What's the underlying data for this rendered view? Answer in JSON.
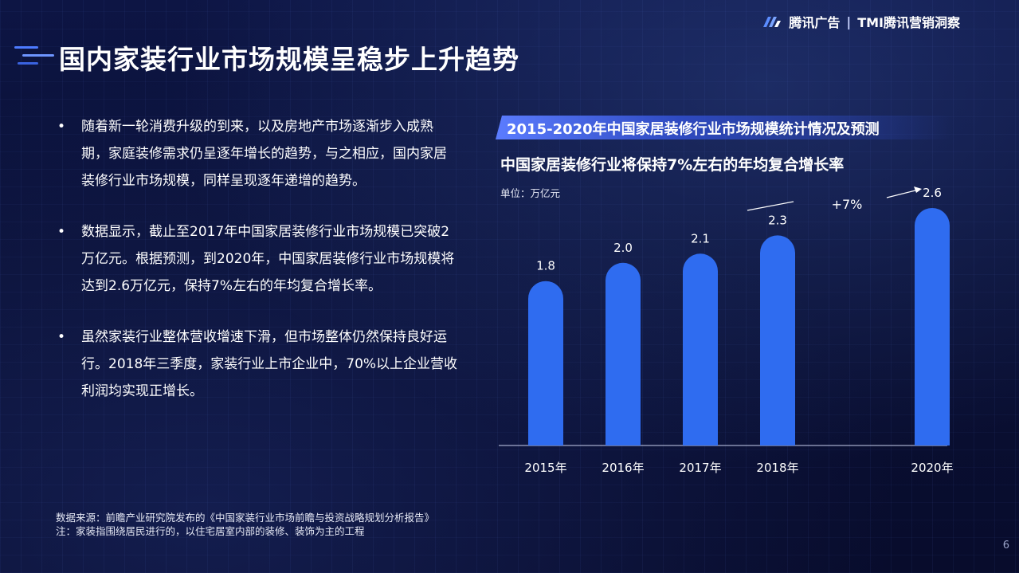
{
  "brand": {
    "name": "腾讯广告",
    "separator": "|",
    "sub": "TMI腾讯营销洞察"
  },
  "page_title": "国内家装行业市场规模呈稳步上升趋势",
  "bullets": [
    "随着新一轮消费升级的到来，以及房地产市场逐渐步入成熟期，家庭装修需求仍呈逐年增长的趋势，与之相应，国内家居装修行业市场规模，同样呈现逐年递增的趋势。",
    "数据显示，截止至2017年中国家居装修行业市场规模已突破2万亿元。根据预测，到2020年，中国家居装修行业市场规模将达到2.6万亿元，保持7%左右的年均复合增长率。",
    "虽然家装行业整体营收增速下滑，但市场整体仍然保持良好运行。2018年三季度，家装行业上市企业中，70%以上企业营收利润均实现正增长。"
  ],
  "bullet_marker": "•",
  "footnote": {
    "source": "数据来源：前瞻产业研究院发布的《中国家装行业市场前瞻与投资战略规划分析报告》",
    "note": "注：家装指围绕居民进行的，以住宅居室内部的装修、装饰为主的工程"
  },
  "page_number": "6",
  "chart_banner": "2015-2020年中国家居装修行业市场规模统计情况及预测",
  "chart_subtitle": "中国家居装修行业将保持7%左右的年均复合增长率",
  "chart_unit": "单位：万亿元",
  "colors": {
    "bar": "#2f6cf0",
    "banner": "#5b7cff",
    "background": "#0a1035"
  },
  "chart_data": {
    "type": "bar",
    "categories": [
      "2015年",
      "2016年",
      "2017年",
      "2018年",
      "2020年"
    ],
    "x_positions": [
      0,
      1,
      2,
      3,
      5
    ],
    "values": [
      1.8,
      2.0,
      2.1,
      2.3,
      2.6
    ],
    "data_labels": [
      "1.8",
      "2.0",
      "2.1",
      "2.3",
      "2.6"
    ],
    "annotation": "+7%",
    "ylim": [
      0,
      2.6
    ]
  }
}
